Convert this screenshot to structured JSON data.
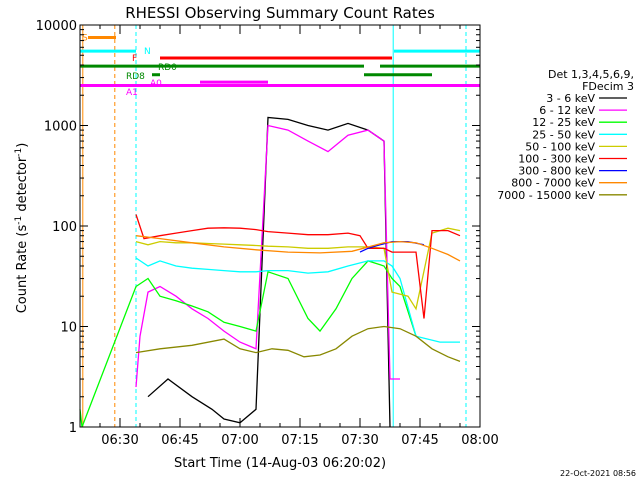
{
  "chart_data": {
    "type": "line",
    "title": "RHESSI Observing Summary Count Rates",
    "xlabel": "Start Time (14-Aug-03 06:20:02)",
    "ylabel": "Count Rate (s^-1 detector^-1)",
    "ylabel_main": "Count Rate (s",
    "ylabel_sup1": "-1",
    "ylabel_mid": " detector",
    "ylabel_sup2": "-1",
    "ylabel_end": ")",
    "yscale": "log",
    "ylim": [
      1,
      10000
    ],
    "xlim_minutes": [
      0,
      100
    ],
    "x_ticks": [
      {
        "label": "06:30",
        "min": 10
      },
      {
        "label": "06:45",
        "min": 25
      },
      {
        "label": "07:00",
        "min": 40
      },
      {
        "label": "07:15",
        "min": 55
      },
      {
        "label": "07:30",
        "min": 70
      },
      {
        "label": "07:45",
        "min": 85
      },
      {
        "label": "08:00",
        "min": 100
      }
    ],
    "y_ticks": [
      {
        "label": "1",
        "v": 1
      },
      {
        "label": "10",
        "v": 10
      },
      {
        "label": "100",
        "v": 100
      },
      {
        "label": "1000",
        "v": 1000
      },
      {
        "label": "10000",
        "v": 10000
      }
    ],
    "legend_header": [
      "Det 1,3,4,5,6,9,",
      "FDecim 3"
    ],
    "series": [
      {
        "name": "3 - 6 keV",
        "color": "#000000",
        "points": [
          [
            17,
            2
          ],
          [
            22,
            3
          ],
          [
            28,
            2
          ],
          [
            33,
            1.5
          ],
          [
            36,
            1.2
          ],
          [
            40,
            1.1
          ],
          [
            44,
            1.5
          ],
          [
            47,
            1200
          ],
          [
            52,
            1150
          ],
          [
            57,
            1000
          ],
          [
            62,
            900
          ],
          [
            67,
            1050
          ],
          [
            72,
            900
          ],
          [
            76,
            700
          ],
          [
            77.5,
            1
          ]
        ]
      },
      {
        "name": "6 - 12 keV",
        "color": "#ff00ff",
        "points": [
          [
            14,
            2.5
          ],
          [
            15,
            8
          ],
          [
            17,
            22
          ],
          [
            20,
            25
          ],
          [
            24,
            20
          ],
          [
            28,
            15
          ],
          [
            32,
            12
          ],
          [
            36,
            9
          ],
          [
            40,
            7
          ],
          [
            44,
            6
          ],
          [
            47,
            1000
          ],
          [
            52,
            900
          ],
          [
            57,
            700
          ],
          [
            62,
            550
          ],
          [
            67,
            800
          ],
          [
            72,
            900
          ],
          [
            76,
            700
          ],
          [
            77.5,
            3
          ],
          [
            80,
            3
          ]
        ]
      },
      {
        "name": "12 - 25 keV",
        "color": "#00ff00",
        "points": [
          [
            0,
            1.5
          ],
          [
            0.5,
            1
          ],
          [
            14,
            25
          ],
          [
            17,
            30
          ],
          [
            20,
            20
          ],
          [
            24,
            18
          ],
          [
            28,
            16
          ],
          [
            32,
            14
          ],
          [
            36,
            11
          ],
          [
            40,
            10
          ],
          [
            44,
            9
          ],
          [
            47,
            35
          ],
          [
            52,
            30
          ],
          [
            57,
            12
          ],
          [
            60,
            9
          ],
          [
            64,
            15
          ],
          [
            68,
            30
          ],
          [
            72,
            45
          ],
          [
            76,
            40
          ],
          [
            78,
            30
          ],
          [
            80,
            25
          ],
          [
            84,
            8
          ]
        ]
      },
      {
        "name": "25 - 50 keV",
        "color": "#00ffff",
        "points": [
          [
            14,
            48
          ],
          [
            17,
            40
          ],
          [
            20,
            45
          ],
          [
            24,
            40
          ],
          [
            28,
            38
          ],
          [
            32,
            37
          ],
          [
            36,
            36
          ],
          [
            40,
            35
          ],
          [
            44,
            35
          ],
          [
            47,
            36
          ],
          [
            52,
            36
          ],
          [
            57,
            34
          ],
          [
            62,
            35
          ],
          [
            67,
            40
          ],
          [
            72,
            45
          ],
          [
            76,
            45
          ],
          [
            78,
            40
          ],
          [
            80,
            30
          ],
          [
            84,
            8
          ],
          [
            90,
            7
          ],
          [
            95,
            7
          ]
        ]
      },
      {
        "name": "50 - 100 keV",
        "color": "#cccc00",
        "points": [
          [
            14,
            70
          ],
          [
            17,
            65
          ],
          [
            20,
            70
          ],
          [
            24,
            68
          ],
          [
            28,
            68
          ],
          [
            32,
            67
          ],
          [
            36,
            66
          ],
          [
            40,
            65
          ],
          [
            44,
            64
          ],
          [
            47,
            63
          ],
          [
            52,
            62
          ],
          [
            57,
            60
          ],
          [
            62,
            60
          ],
          [
            67,
            62
          ],
          [
            72,
            62
          ],
          [
            76,
            60
          ],
          [
            78,
            22
          ],
          [
            82,
            20
          ],
          [
            84,
            15
          ],
          [
            88,
            85
          ],
          [
            92,
            95
          ],
          [
            95,
            90
          ]
        ]
      },
      {
        "name": "100 - 300 keV",
        "color": "#ff0000",
        "points": [
          [
            14,
            130
          ],
          [
            16,
            75
          ],
          [
            20,
            80
          ],
          [
            24,
            85
          ],
          [
            28,
            90
          ],
          [
            32,
            95
          ],
          [
            36,
            96
          ],
          [
            40,
            95
          ],
          [
            44,
            92
          ],
          [
            47,
            88
          ],
          [
            52,
            85
          ],
          [
            57,
            82
          ],
          [
            62,
            82
          ],
          [
            67,
            85
          ],
          [
            70,
            80
          ],
          [
            72,
            60
          ],
          [
            76,
            60
          ],
          [
            78,
            55
          ],
          [
            84,
            55
          ],
          [
            86,
            12
          ],
          [
            88,
            90
          ],
          [
            92,
            90
          ],
          [
            95,
            80
          ]
        ]
      },
      {
        "name": "300 - 800 keV",
        "color": "#0000ff",
        "points": [
          [
            70,
            55
          ],
          [
            72,
            60
          ],
          [
            75,
            65
          ],
          [
            78,
            70
          ],
          [
            82,
            70
          ],
          [
            86,
            65
          ]
        ]
      },
      {
        "name": "800 - 7000 keV",
        "color": "#ff8800",
        "points": [
          [
            14,
            80
          ],
          [
            20,
            75
          ],
          [
            28,
            68
          ],
          [
            36,
            62
          ],
          [
            44,
            58
          ],
          [
            52,
            55
          ],
          [
            60,
            54
          ],
          [
            68,
            56
          ],
          [
            76,
            68
          ],
          [
            80,
            70
          ],
          [
            84,
            68
          ],
          [
            88,
            60
          ],
          [
            92,
            52
          ],
          [
            95,
            45
          ]
        ]
      },
      {
        "name": "7000 - 15000 keV",
        "color": "#888800",
        "points": [
          [
            14,
            5.5
          ],
          [
            20,
            6
          ],
          [
            28,
            6.5
          ],
          [
            36,
            7.5
          ],
          [
            40,
            6
          ],
          [
            44,
            5.5
          ],
          [
            48,
            6
          ],
          [
            52,
            5.8
          ],
          [
            56,
            5
          ],
          [
            60,
            5.2
          ],
          [
            64,
            6
          ],
          [
            68,
            8
          ],
          [
            72,
            9.5
          ],
          [
            76,
            10
          ],
          [
            80,
            9.5
          ],
          [
            84,
            8
          ],
          [
            88,
            6
          ],
          [
            92,
            5
          ],
          [
            95,
            4.5
          ]
        ]
      }
    ],
    "bars": [
      {
        "label": "S",
        "color": "#ff8800",
        "min_start": 2,
        "min_end": 9,
        "v": 7500
      },
      {
        "label": "N",
        "color": "#00ffff",
        "min_start": 0,
        "min_end": 14,
        "v": 5500
      },
      {
        "label": "N",
        "color": "#00ffff",
        "min_start": 78.5,
        "min_end": 100,
        "v": 5500
      },
      {
        "label": "F",
        "color": "#ff0000",
        "min_start": 20,
        "min_end": 78,
        "v": 4700
      },
      {
        "label": "RD0",
        "color": "#008800",
        "min_start": 0,
        "min_end": 71,
        "v": 3900
      },
      {
        "label": "RD0",
        "color": "#008800",
        "min_start": 75,
        "min_end": 100,
        "v": 3900
      },
      {
        "label": "RD8",
        "color": "#008800",
        "min_start": 18,
        "min_end": 20,
        "v": 3200
      },
      {
        "label": "RD8",
        "color": "#008800",
        "min_start": 71,
        "min_end": 88,
        "v": 3200
      },
      {
        "label": "A0",
        "color": "#ff00ff",
        "min_start": 30,
        "min_end": 47,
        "v": 2700
      },
      {
        "label": "A1",
        "color": "#ff00ff",
        "min_start": 0,
        "min_end": 100,
        "v": 2500
      }
    ],
    "bar_labels": [
      {
        "text": "S",
        "color": "#ff8800",
        "min": 0.5,
        "v": 7500
      },
      {
        "text": "N",
        "color": "#00ffff",
        "min": 16,
        "v": 5500
      },
      {
        "text": "F",
        "color": "#ff0000",
        "min": 13,
        "v": 4700
      },
      {
        "text": "RD0",
        "color": "#008800",
        "min": 19.5,
        "v": 3800
      },
      {
        "text": "RD8",
        "color": "#008800",
        "min": 11.5,
        "v": 3100
      },
      {
        "text": "A0",
        "color": "#ff00ff",
        "min": 17.5,
        "v": 2650
      },
      {
        "text": "A1",
        "color": "#ff00ff",
        "min": 11.5,
        "v": 2150
      }
    ],
    "vlines": [
      {
        "min": 0.7,
        "color": "#ff8800",
        "style": "solid"
      },
      {
        "min": 8.7,
        "color": "#ff8800",
        "style": "dash"
      },
      {
        "min": 14,
        "color": "#00ffff",
        "style": "dash"
      },
      {
        "min": 78.3,
        "color": "#00ffff",
        "style": "solid"
      },
      {
        "min": 96.5,
        "color": "#00ffff",
        "style": "dash"
      }
    ]
  },
  "footer": {
    "timestamp": "22-Oct-2021 08:56"
  }
}
